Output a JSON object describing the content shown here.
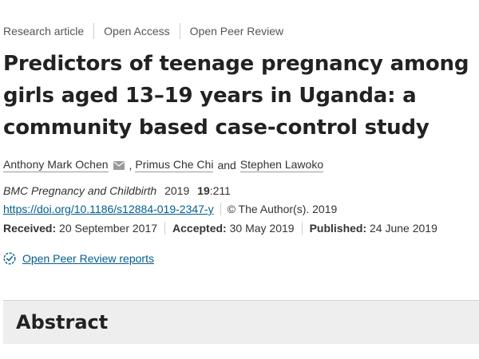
{
  "meta": {
    "items": [
      "Research article",
      "Open Access",
      "Open Peer Review"
    ]
  },
  "article": {
    "title": "Predictors of teenage pregnancy among girls aged 13–19 years in Uganda: a community based case-control study"
  },
  "authors": {
    "names": [
      "Anthony Mark Ochen",
      "Primus Che Chi",
      "Stephen Lawoko"
    ],
    "separator": ",",
    "conjunction": "and"
  },
  "citation": {
    "journal": "BMC Pregnancy and Childbirth",
    "year": "2019",
    "volume": "19",
    "article_number": ":211"
  },
  "doi": {
    "link": "https://doi.org/10.1186/s12884-019-2347-y",
    "copyright": "©  The Author(s). 2019"
  },
  "dates": {
    "received_label": "Received:",
    "received": "20 September 2017",
    "accepted_label": "Accepted:",
    "accepted": "30 May 2019",
    "published_label": "Published:",
    "published": "24 June 2019"
  },
  "peer_review": {
    "link_text": "Open Peer Review reports"
  },
  "abstract": {
    "heading": "Abstract"
  },
  "colors": {
    "link": "#025e8d",
    "title": "#222222",
    "abstract_bg": "#eeeeee"
  }
}
